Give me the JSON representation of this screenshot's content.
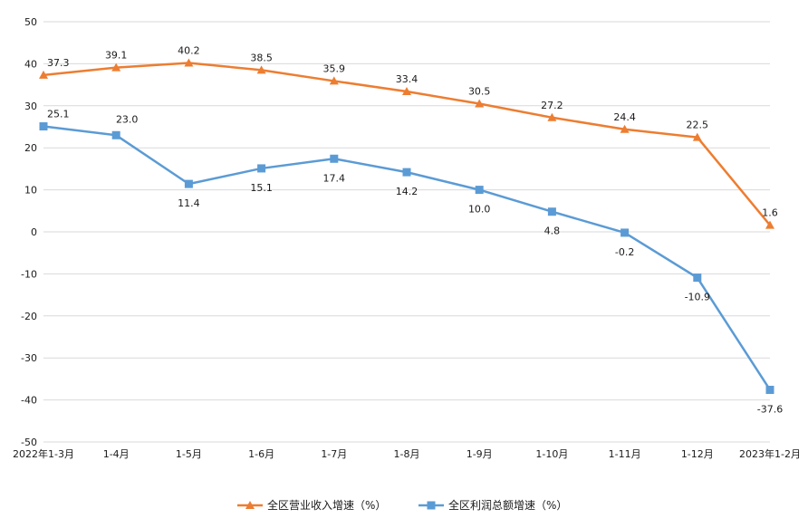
{
  "chart_data": {
    "type": "line",
    "title": "",
    "xlabel": "",
    "ylabel": "",
    "categories": [
      "2022年1-3月",
      "1-4月",
      "1-5月",
      "1-6月",
      "1-7月",
      "1-8月",
      "1-9月",
      "1-10月",
      "1-11月",
      "1-12月",
      "2023年1-2月"
    ],
    "ylim": [
      -50,
      50
    ],
    "yticks": [
      50,
      40,
      30,
      20,
      10,
      0,
      -10,
      -20,
      -30,
      -40,
      -50
    ],
    "grid": true,
    "legend_position": "bottom",
    "series": [
      {
        "name": "全区营业收入增速（%）",
        "color": "#ed7d31",
        "marker": "triangle",
        "values": [
          37.3,
          39.1,
          40.2,
          38.5,
          35.9,
          33.4,
          30.5,
          27.2,
          24.4,
          22.5,
          1.6
        ],
        "labels": [
          "37.3",
          "39.1",
          "40.2",
          "38.5",
          "35.9",
          "33.4",
          "30.5",
          "27.2",
          "24.4",
          "22.5",
          "1.6"
        ]
      },
      {
        "name": "全区利润总额增速（%）",
        "color": "#5b9bd5",
        "marker": "square",
        "values": [
          25.1,
          23.0,
          11.4,
          15.1,
          17.4,
          14.2,
          10.0,
          4.8,
          -0.2,
          -10.9,
          -37.6
        ],
        "labels": [
          "25.1",
          "23.0",
          "11.4",
          "15.1",
          "17.4",
          "14.2",
          "10.0",
          "4.8",
          "-0.2",
          "-10.9",
          "-37.6"
        ]
      }
    ]
  }
}
